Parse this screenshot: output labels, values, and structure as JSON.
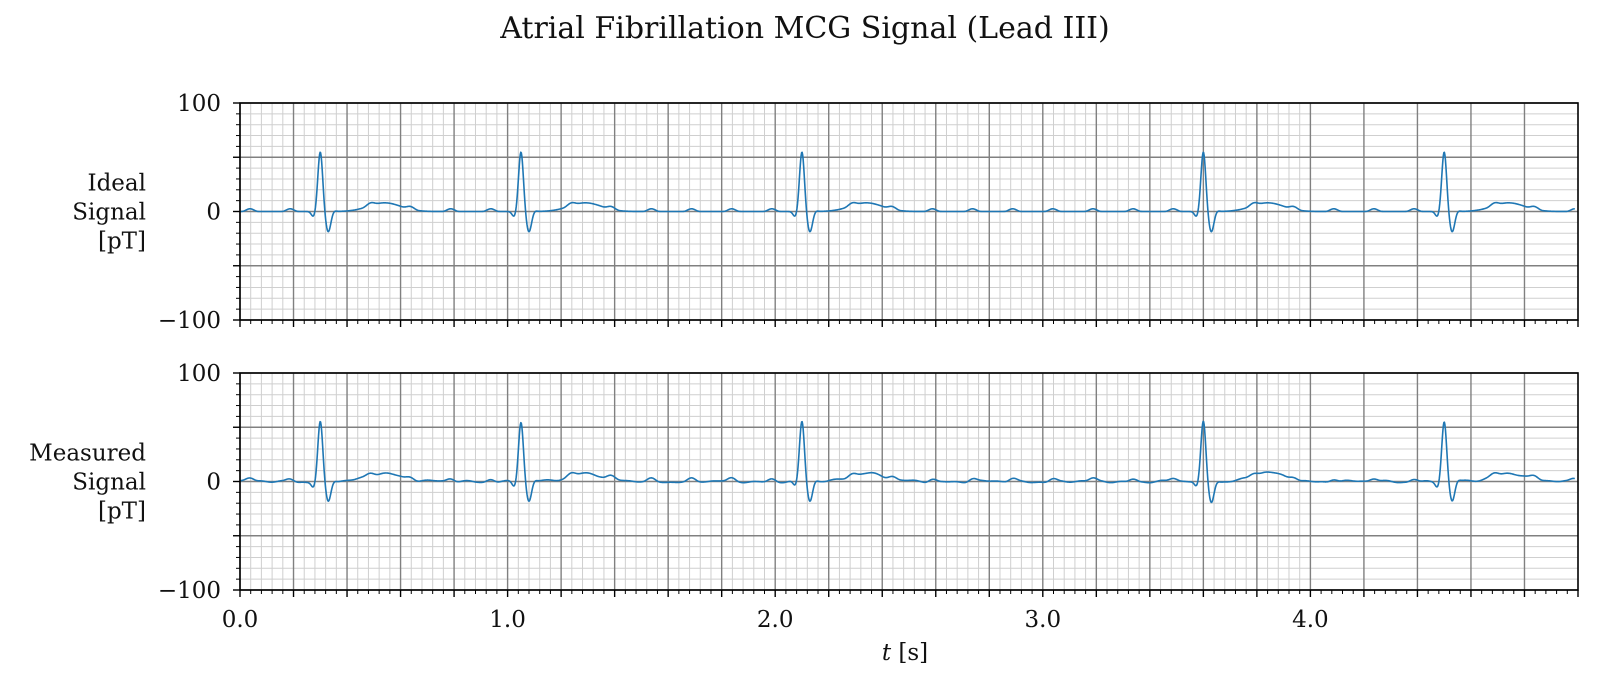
{
  "chart_data": {
    "type": "line",
    "title": "Atrial Fibrillation MCG Signal (Lead III)",
    "xlabel_italic": "t",
    "xlabel_unit": " [s]",
    "xlim": [
      0.0,
      5.0
    ],
    "x_tick_values": [
      0.0,
      1.0,
      2.0,
      3.0,
      4.0
    ],
    "x_tick_labels": [
      "0.0",
      "1.0",
      "2.0",
      "3.0",
      "4.0"
    ],
    "ylim": [
      -100,
      100
    ],
    "y_tick_values": [
      100,
      0,
      -100
    ],
    "y_tick_labels": [
      "100",
      "0",
      "−100"
    ],
    "grid": "major and minor",
    "colors": {
      "line": "#1f77b4",
      "major_grid": "#808080",
      "minor_grid": "#cfcfcf",
      "axes": "#000000"
    },
    "beat_times_s": [
      0.3,
      1.05,
      2.1,
      3.6,
      4.5
    ],
    "wave_shape": {
      "r_peak_pT": 55,
      "q_dip_pT": -5,
      "s_dip_pT": -21,
      "t_wave_pT": 8,
      "fibrillatory_amplitude_pT": 2.5,
      "fibrillatory_period_s": 0.15
    },
    "panels": [
      {
        "ylabel": [
          "Ideal",
          "Signal",
          "[pT]"
        ],
        "noise_pT": 0
      },
      {
        "ylabel": [
          "Measured",
          "Signal",
          "[pT]"
        ],
        "noise_pT": 1.0
      }
    ]
  }
}
